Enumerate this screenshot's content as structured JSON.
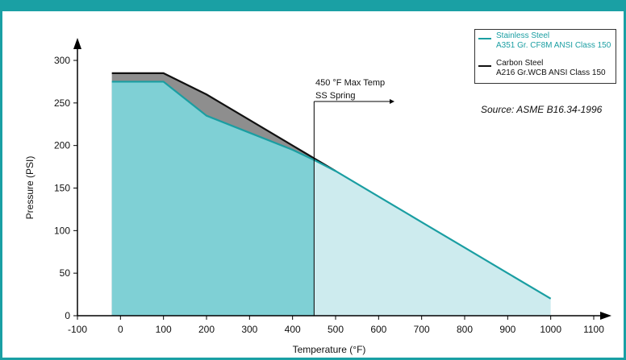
{
  "colors": {
    "stainless": "#1a9ea2",
    "stainless_fill": "#7fd0d5",
    "stainless_fill_light": "#cdebee",
    "carbon": "#111111",
    "carbon_fill": "#8e8e8e",
    "frame": "#1aa0a4"
  },
  "legend": {
    "stainless": [
      "Stainless Steel",
      "A351 Gr. CF8M ANSI Class 150"
    ],
    "carbon": [
      "Carbon Steel",
      "A216 Gr.WCB ANSI Class 150"
    ]
  },
  "source_text": "Source:  ASME B16.34-1996",
  "annotation": [
    "450 °F Max Temp",
    "SS Spring"
  ],
  "chart_data": {
    "type": "area",
    "xlabel": "Temperature (°F)",
    "ylabel": "Pressure (PSI)",
    "xlim": [
      -100,
      1100
    ],
    "ylim": [
      0,
      300
    ],
    "x_ticks": [
      -100,
      0,
      100,
      200,
      300,
      400,
      500,
      600,
      700,
      800,
      900,
      1000,
      1100
    ],
    "y_ticks": [
      0,
      50,
      100,
      150,
      200,
      250,
      300
    ],
    "max_temp_marker": 450,
    "series": [
      {
        "name": "Stainless Steel A351 Gr. CF8M ANSI Class 150",
        "x": [
          -20,
          100,
          200,
          300,
          400,
          450,
          500,
          600,
          700,
          800,
          900,
          1000
        ],
        "y": [
          275,
          275,
          235,
          215,
          195,
          183,
          170,
          140,
          110,
          80,
          50,
          20
        ]
      },
      {
        "name": "Carbon Steel A216 Gr.WCB ANSI Class 150",
        "x": [
          -20,
          100,
          200,
          300,
          400,
          450,
          500
        ],
        "y": [
          285,
          285,
          260,
          230,
          200,
          185,
          170
        ]
      }
    ]
  }
}
